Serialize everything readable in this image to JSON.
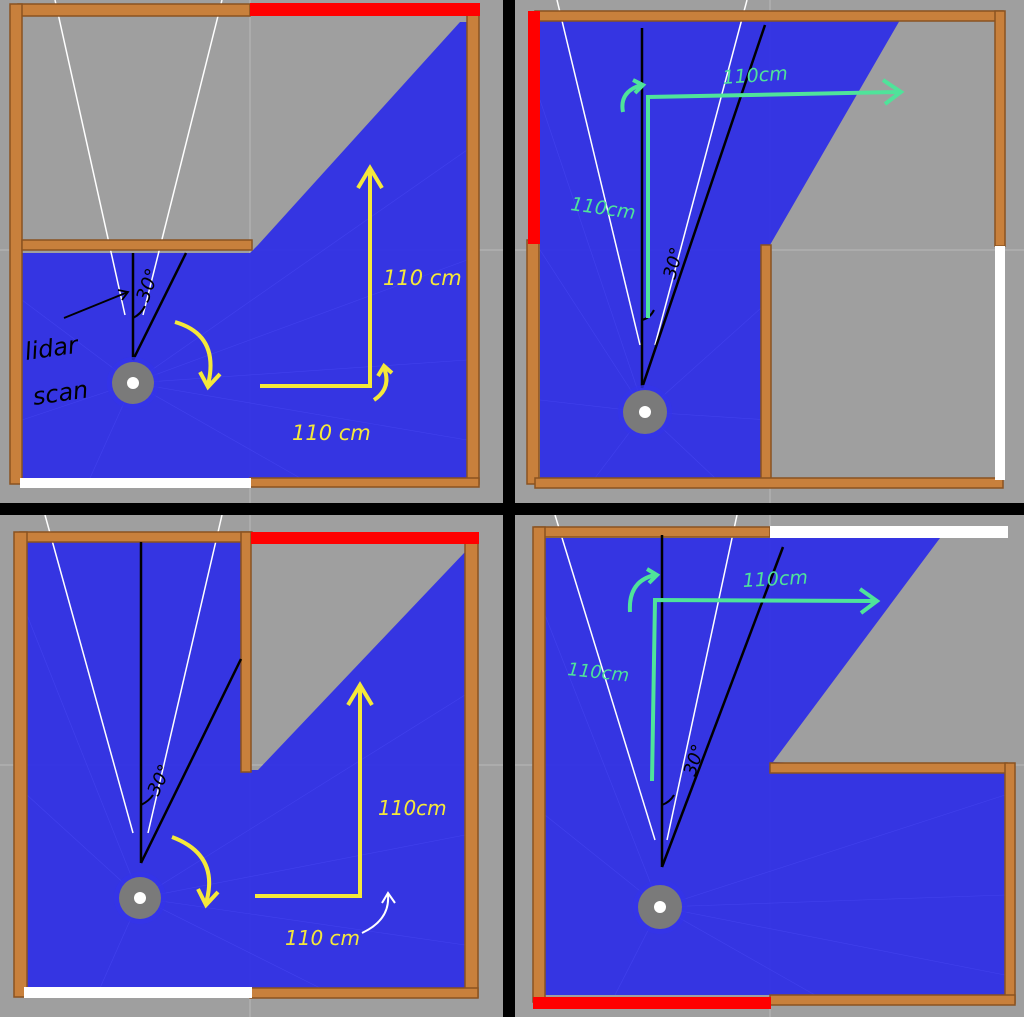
{
  "colors": {
    "background": "#000000",
    "floor": "#9f9f9f",
    "grid": "#b4b4b4",
    "scan": "#2f2fe6",
    "wall": "#c8803c",
    "wall_dark": "#8a5220",
    "red_boundary": "#ff0000",
    "white_boundary": "#ffffff",
    "yellow_annotation": "#f5e83a",
    "green_annotation": "#4fe39a",
    "robot": "#7a7a7a"
  },
  "panels": [
    {
      "id": "top-left",
      "labels": {
        "lidar": "lidar",
        "scan": "scan",
        "angle": "30°",
        "vertical": "110 cm",
        "horizontal": "110 cm"
      }
    },
    {
      "id": "top-right",
      "labels": {
        "angle": "30°",
        "vertical": "110cm",
        "horizontal": "110cm"
      }
    },
    {
      "id": "bottom-left",
      "labels": {
        "angle": "30°",
        "vertical": "110cm",
        "horizontal": "110 cm"
      }
    },
    {
      "id": "bottom-right",
      "labels": {
        "angle": "30°",
        "vertical": "110cm",
        "horizontal": "110cm"
      }
    }
  ]
}
